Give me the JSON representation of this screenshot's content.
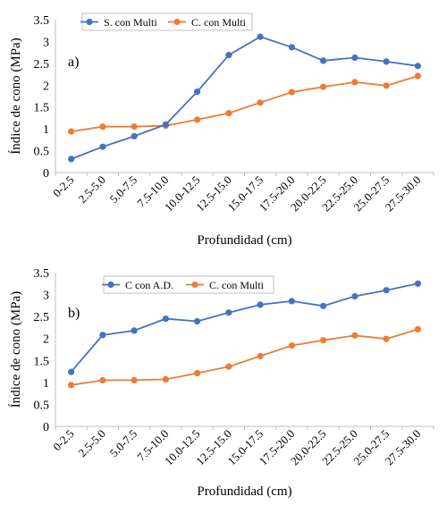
{
  "chart_data": [
    {
      "type": "line",
      "panel_label": "a)",
      "categories": [
        "0-2.5",
        "2.5-5.0",
        "5.0-7.5",
        "7.5-10.0",
        "10.0-12.5",
        "12.5-15.0",
        "15.0-17.5",
        "17.5-20.0",
        "20.0-22.5",
        "22.5-25.0",
        "25.0-27.5",
        "27.5-30.0"
      ],
      "series": [
        {
          "name": "S. con Multi",
          "color": "#4472C4",
          "values": [
            0.31,
            0.59,
            0.83,
            1.1,
            1.85,
            2.69,
            3.11,
            2.87,
            2.56,
            2.63,
            2.54,
            2.44
          ]
        },
        {
          "name": "C. con Multi",
          "color": "#ED7D31",
          "values": [
            0.94,
            1.05,
            1.05,
            1.07,
            1.21,
            1.36,
            1.6,
            1.84,
            1.96,
            2.07,
            1.99,
            2.21
          ]
        }
      ],
      "xlabel": "Profundidad (cm)",
      "ylabel": "Índice de cono (MPa)",
      "ylim": [
        0,
        3.5
      ],
      "yticks": [
        "0",
        "0.5",
        "1",
        "1.5",
        "2",
        "2.5",
        "3",
        "3.5"
      ],
      "legend_position": "top-left",
      "grid": false
    },
    {
      "type": "line",
      "panel_label": "b)",
      "categories": [
        "0-2.5",
        "2.5-5.0",
        "5.0-7.5",
        "7.5-10.0",
        "10.0-12.5",
        "12.5-15.0",
        "15.0-17.5",
        "17.5-20.0",
        "20.0-22.5",
        "22.5-25.0",
        "25.0-27.5",
        "27.5-30.0"
      ],
      "series": [
        {
          "name": "C con A.D.",
          "color": "#4472C4",
          "values": [
            1.24,
            2.08,
            2.18,
            2.45,
            2.39,
            2.59,
            2.77,
            2.85,
            2.74,
            2.96,
            3.1,
            3.25
          ]
        },
        {
          "name": "C. con Multi",
          "color": "#ED7D31",
          "values": [
            0.94,
            1.05,
            1.05,
            1.07,
            1.21,
            1.36,
            1.6,
            1.84,
            1.96,
            2.07,
            1.99,
            2.21
          ]
        }
      ],
      "xlabel": "Profundidad (cm)",
      "ylabel": "Índice de cono (MPa)",
      "ylim": [
        0,
        3.5
      ],
      "yticks": [
        "0",
        "0.5",
        "1",
        "1.5",
        "2",
        "2.5",
        "3",
        "3.5"
      ],
      "legend_position": "top-left",
      "grid": false
    }
  ]
}
